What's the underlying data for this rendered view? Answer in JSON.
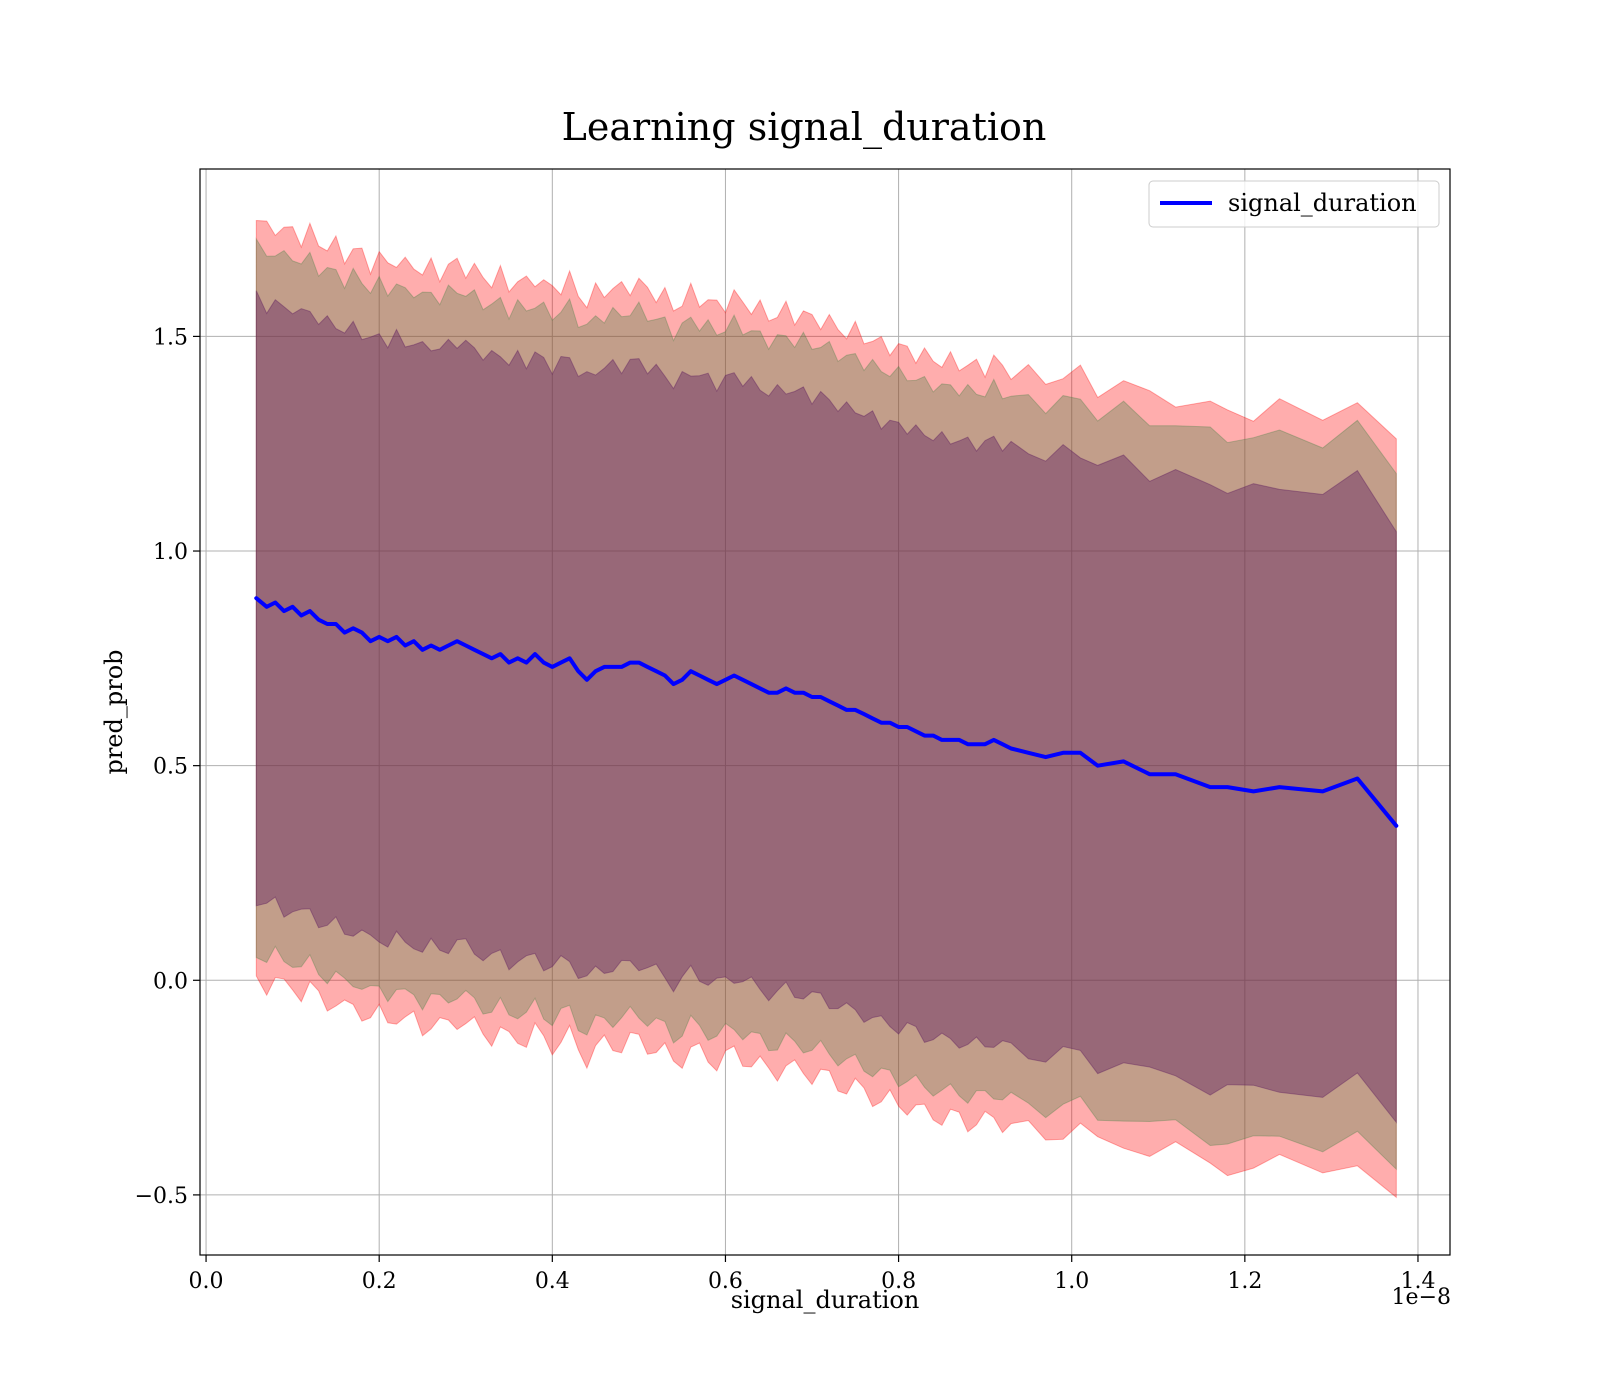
{
  "chart_data": {
    "type": "line",
    "title": "Learning signal_duration",
    "xlabel": "signal_duration",
    "ylabel": "pred_prob",
    "x_offset_label": "1e−8",
    "x_scale_multiplier": 1e-08,
    "xlim": [
      -0.007,
      1.437
    ],
    "ylim": [
      -0.64,
      1.89
    ],
    "x_ticks": [
      0.0,
      0.2,
      0.4,
      0.6,
      0.8,
      1.0,
      1.2,
      1.4
    ],
    "x_tick_labels": [
      "0.0",
      "0.2",
      "0.4",
      "0.6",
      "0.8",
      "1.0",
      "1.2",
      "1.4"
    ],
    "y_ticks": [
      -0.5,
      0.0,
      0.5,
      1.0,
      1.5
    ],
    "y_tick_labels": [
      "−0.5",
      "0.0",
      "0.5",
      "1.0",
      "1.5"
    ],
    "grid": true,
    "legend_position": "top-right",
    "series": [
      {
        "name": "signal_duration",
        "color": "#0000ff",
        "x": [
          0.058,
          0.07,
          0.08,
          0.09,
          0.1,
          0.11,
          0.12,
          0.13,
          0.14,
          0.15,
          0.16,
          0.17,
          0.18,
          0.19,
          0.2,
          0.21,
          0.22,
          0.23,
          0.24,
          0.25,
          0.26,
          0.27,
          0.28,
          0.29,
          0.3,
          0.31,
          0.32,
          0.33,
          0.34,
          0.35,
          0.36,
          0.37,
          0.38,
          0.39,
          0.4,
          0.41,
          0.42,
          0.43,
          0.44,
          0.45,
          0.46,
          0.47,
          0.48,
          0.49,
          0.5,
          0.51,
          0.52,
          0.53,
          0.54,
          0.55,
          0.56,
          0.57,
          0.58,
          0.59,
          0.6,
          0.61,
          0.62,
          0.63,
          0.64,
          0.65,
          0.66,
          0.67,
          0.68,
          0.69,
          0.7,
          0.71,
          0.72,
          0.73,
          0.74,
          0.75,
          0.76,
          0.77,
          0.78,
          0.79,
          0.8,
          0.81,
          0.82,
          0.83,
          0.84,
          0.85,
          0.86,
          0.87,
          0.88,
          0.89,
          0.9,
          0.91,
          0.92,
          0.93,
          0.95,
          0.97,
          0.99,
          1.01,
          1.03,
          1.06,
          1.09,
          1.12,
          1.16,
          1.18,
          1.21,
          1.24,
          1.29,
          1.33,
          1.375
        ],
        "y": [
          0.89,
          0.87,
          0.88,
          0.86,
          0.87,
          0.85,
          0.86,
          0.84,
          0.83,
          0.83,
          0.81,
          0.82,
          0.81,
          0.79,
          0.8,
          0.79,
          0.8,
          0.78,
          0.79,
          0.77,
          0.78,
          0.77,
          0.78,
          0.79,
          0.78,
          0.77,
          0.76,
          0.75,
          0.76,
          0.74,
          0.75,
          0.74,
          0.76,
          0.74,
          0.73,
          0.74,
          0.75,
          0.72,
          0.7,
          0.72,
          0.73,
          0.73,
          0.73,
          0.74,
          0.74,
          0.73,
          0.72,
          0.71,
          0.69,
          0.7,
          0.72,
          0.71,
          0.7,
          0.69,
          0.7,
          0.71,
          0.7,
          0.69,
          0.68,
          0.67,
          0.67,
          0.68,
          0.67,
          0.67,
          0.66,
          0.66,
          0.65,
          0.64,
          0.63,
          0.63,
          0.62,
          0.61,
          0.6,
          0.6,
          0.59,
          0.59,
          0.58,
          0.57,
          0.57,
          0.56,
          0.56,
          0.56,
          0.55,
          0.55,
          0.55,
          0.56,
          0.55,
          0.54,
          0.53,
          0.52,
          0.53,
          0.53,
          0.5,
          0.51,
          0.48,
          0.48,
          0.45,
          0.45,
          0.44,
          0.45,
          0.44,
          0.47,
          0.36
        ]
      }
    ],
    "bands": [
      {
        "color": "#ff0000",
        "alpha": 0.32,
        "half_width": 0.88,
        "upper_noise": 0.025,
        "lower_noise": 0.025
      },
      {
        "color": "#408040",
        "alpha": 0.32,
        "half_width": 0.82,
        "upper_noise": 0.02,
        "lower_noise": 0.02
      },
      {
        "color": "#602060",
        "alpha": 0.42,
        "half_width": 0.7,
        "upper_noise": 0.018,
        "lower_noise": 0.018
      }
    ]
  }
}
